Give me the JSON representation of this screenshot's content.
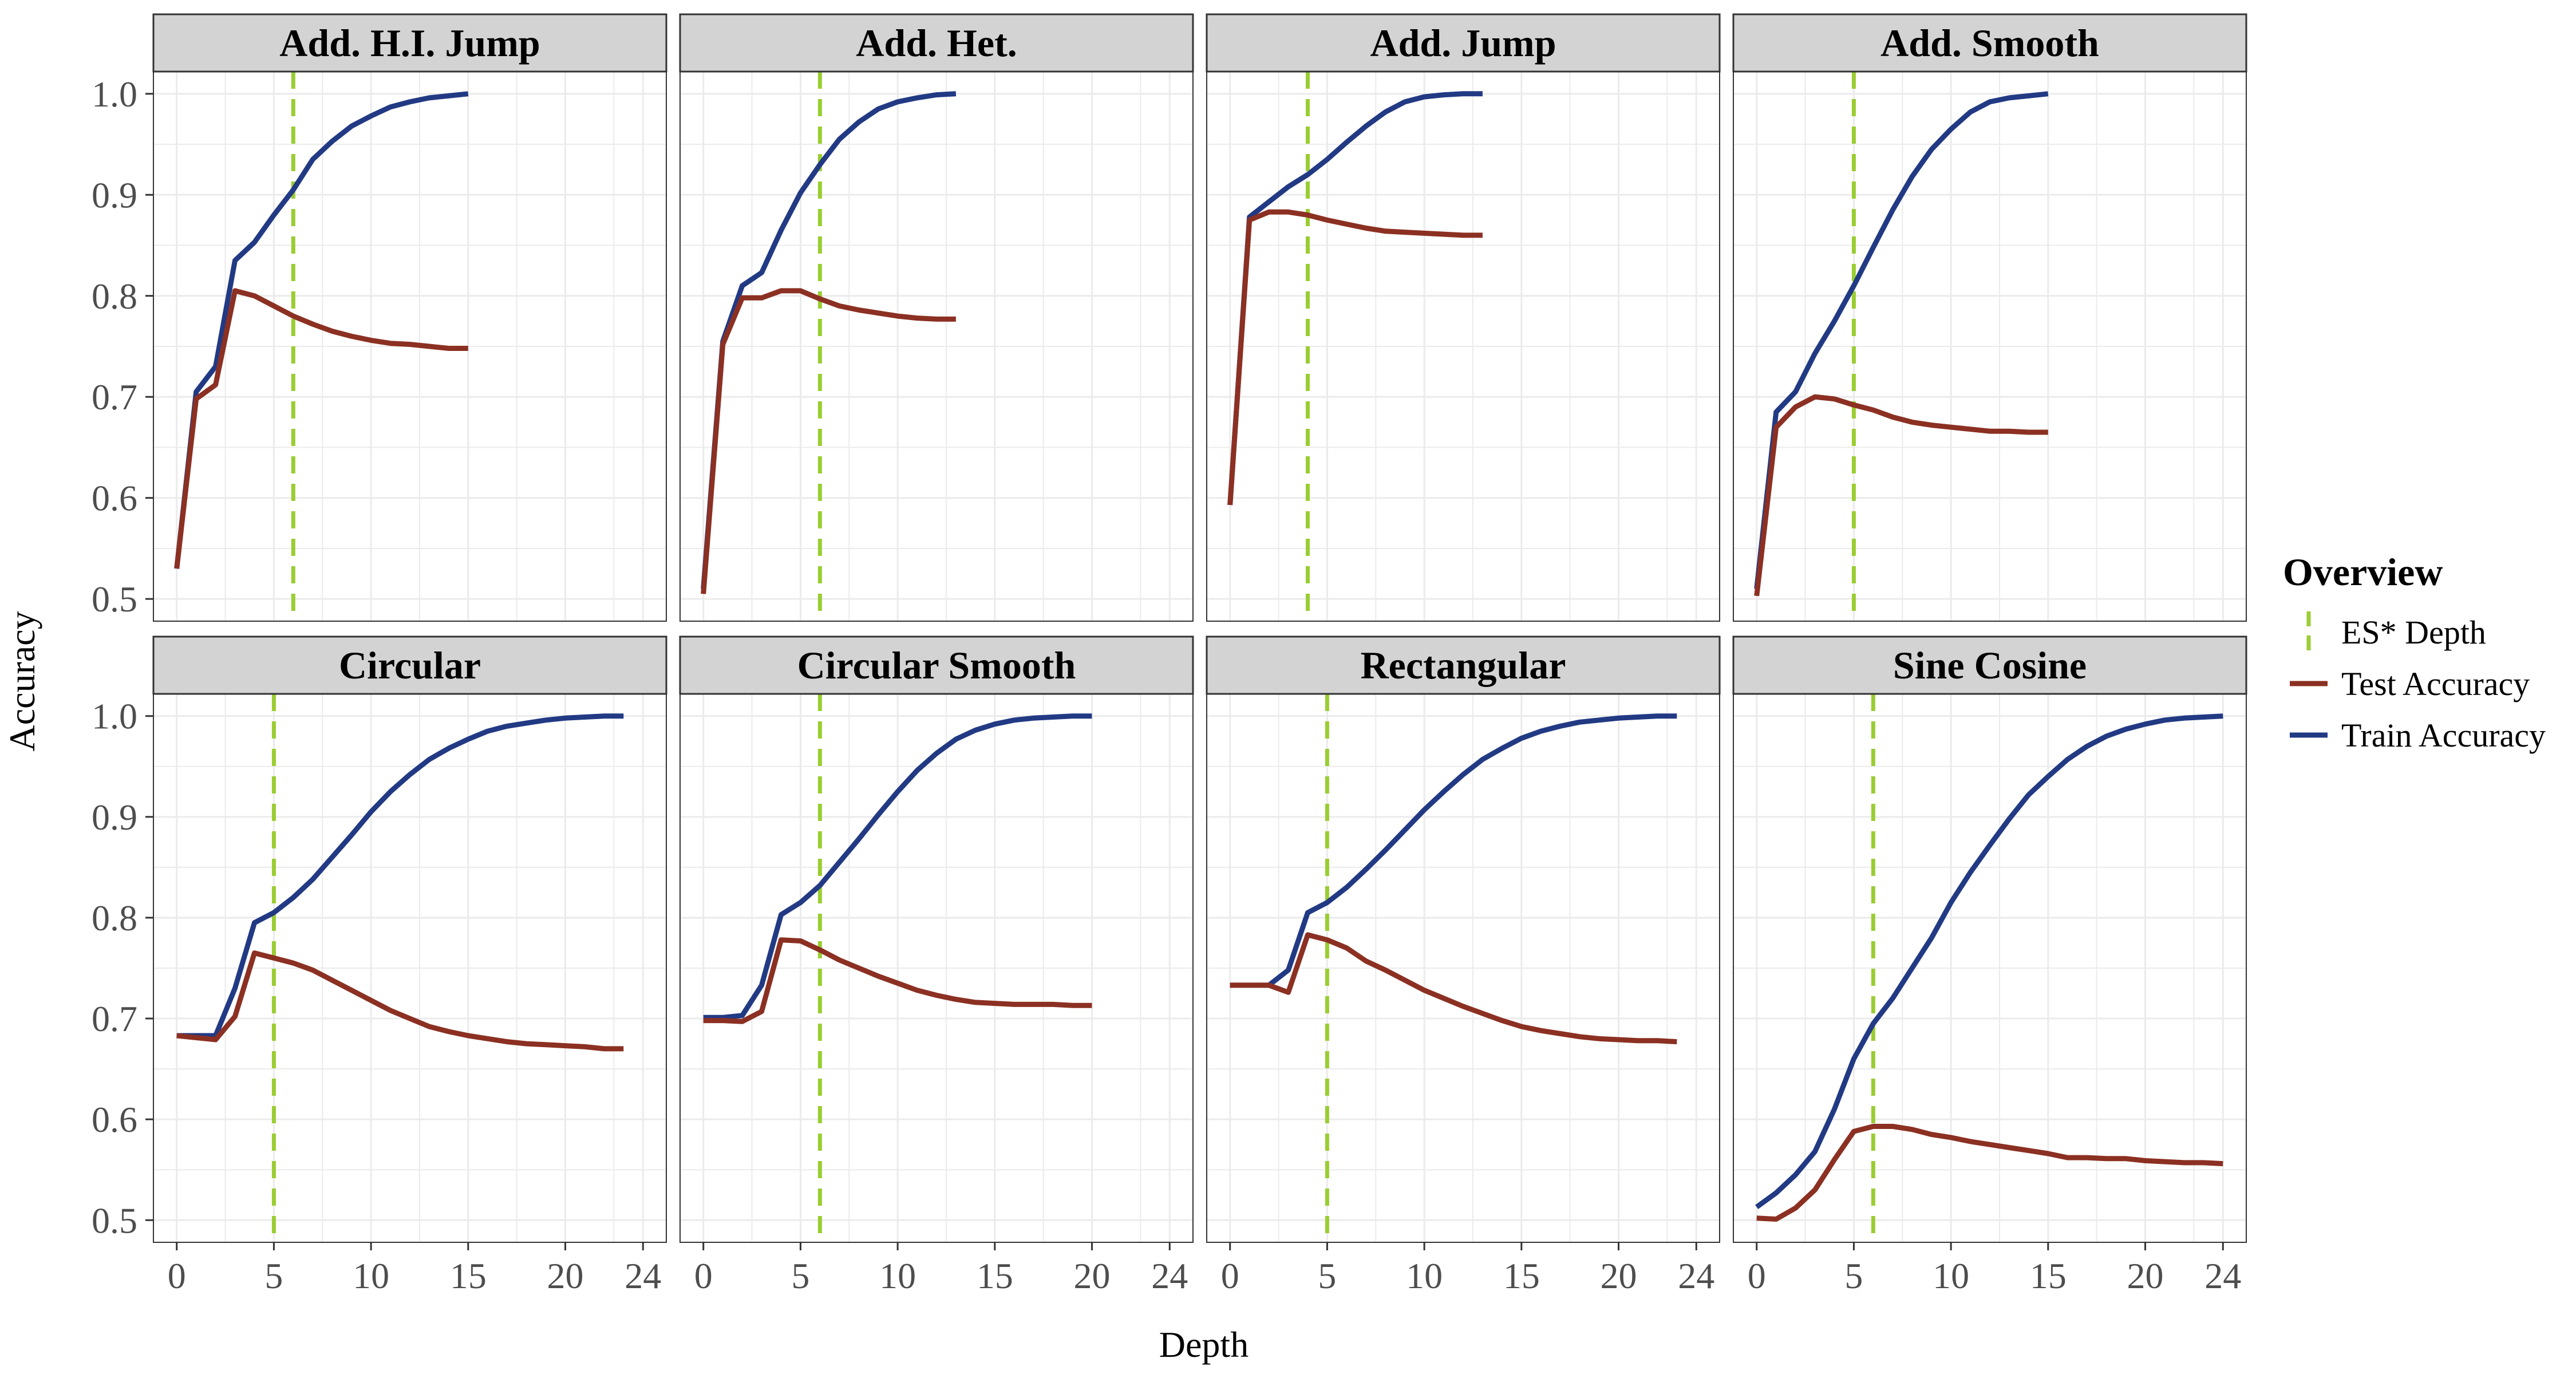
{
  "figure": {
    "xlabel": "Depth",
    "ylabel": "Accuracy",
    "x_ticks": [
      0,
      5,
      10,
      15,
      20,
      24
    ],
    "y_ticks": [
      0.5,
      0.6,
      0.7,
      0.8,
      0.9,
      1.0
    ],
    "xlim": [
      -1.2,
      25.2
    ],
    "ylim": [
      0.478,
      1.022
    ],
    "legend": {
      "title": "Overview",
      "position": "right",
      "entries": [
        {
          "label": "ES* Depth",
          "color": "#9ACD32",
          "style": "dashed-vertical"
        },
        {
          "label": "Test Accuracy",
          "color": "#8B3022",
          "style": "line"
        },
        {
          "label": "Train Accuracy",
          "color": "#223A84",
          "style": "line"
        }
      ]
    },
    "colors": {
      "train": "#223A84",
      "test": "#8B3022",
      "es": "#9ACD32",
      "strip_bg": "#D3D3D3",
      "grid": "#EBEBEB"
    }
  },
  "chart_data": [
    {
      "type": "line",
      "title": "Add. H.I. Jump",
      "es_depth": 6,
      "x": [
        0,
        1,
        2,
        3,
        4,
        5,
        6,
        7,
        8,
        9,
        10,
        11,
        12,
        13,
        14,
        15
      ],
      "series": [
        {
          "name": "Train Accuracy",
          "values": [
            0.53,
            0.705,
            0.73,
            0.835,
            0.853,
            0.88,
            0.905,
            0.935,
            0.953,
            0.968,
            0.978,
            0.987,
            0.992,
            0.996,
            0.998,
            1.0
          ]
        },
        {
          "name": "Test Accuracy",
          "values": [
            0.53,
            0.698,
            0.712,
            0.805,
            0.8,
            0.79,
            0.78,
            0.772,
            0.765,
            0.76,
            0.756,
            0.753,
            0.752,
            0.75,
            0.748,
            0.748
          ]
        }
      ]
    },
    {
      "type": "line",
      "title": "Add. Het.",
      "es_depth": 6,
      "x": [
        0,
        1,
        2,
        3,
        4,
        5,
        6,
        7,
        8,
        9,
        10,
        11,
        12,
        13
      ],
      "series": [
        {
          "name": "Train Accuracy",
          "values": [
            0.51,
            0.755,
            0.81,
            0.823,
            0.865,
            0.902,
            0.93,
            0.955,
            0.972,
            0.985,
            0.992,
            0.996,
            0.999,
            1.0
          ]
        },
        {
          "name": "Test Accuracy",
          "values": [
            0.505,
            0.752,
            0.798,
            0.798,
            0.805,
            0.805,
            0.797,
            0.79,
            0.786,
            0.783,
            0.78,
            0.778,
            0.777,
            0.777
          ]
        }
      ]
    },
    {
      "type": "line",
      "title": "Add. Jump",
      "es_depth": 4,
      "x": [
        0,
        1,
        2,
        3,
        4,
        5,
        6,
        7,
        8,
        9,
        10,
        11,
        12,
        13
      ],
      "series": [
        {
          "name": "Train Accuracy",
          "values": [
            0.593,
            0.878,
            0.893,
            0.908,
            0.92,
            0.935,
            0.952,
            0.968,
            0.982,
            0.992,
            0.997,
            0.999,
            1.0,
            1.0
          ]
        },
        {
          "name": "Test Accuracy",
          "values": [
            0.593,
            0.875,
            0.883,
            0.883,
            0.88,
            0.875,
            0.871,
            0.867,
            0.864,
            0.863,
            0.862,
            0.861,
            0.86,
            0.86
          ]
        }
      ]
    },
    {
      "type": "line",
      "title": "Add. Smooth",
      "es_depth": 5,
      "x": [
        0,
        1,
        2,
        3,
        4,
        5,
        6,
        7,
        8,
        9,
        10,
        11,
        12,
        13,
        14,
        15
      ],
      "series": [
        {
          "name": "Train Accuracy",
          "values": [
            0.51,
            0.685,
            0.705,
            0.743,
            0.775,
            0.81,
            0.848,
            0.885,
            0.918,
            0.945,
            0.965,
            0.982,
            0.992,
            0.996,
            0.998,
            1.0
          ]
        },
        {
          "name": "Test Accuracy",
          "values": [
            0.503,
            0.67,
            0.69,
            0.7,
            0.698,
            0.692,
            0.687,
            0.68,
            0.675,
            0.672,
            0.67,
            0.668,
            0.666,
            0.666,
            0.665,
            0.665
          ]
        }
      ]
    },
    {
      "type": "line",
      "title": "Circular",
      "es_depth": 5,
      "x": [
        0,
        1,
        2,
        3,
        4,
        5,
        6,
        7,
        8,
        9,
        10,
        11,
        12,
        13,
        14,
        15,
        16,
        17,
        18,
        19,
        20,
        21,
        22,
        23
      ],
      "series": [
        {
          "name": "Train Accuracy",
          "values": [
            0.683,
            0.683,
            0.683,
            0.73,
            0.795,
            0.805,
            0.82,
            0.838,
            0.86,
            0.882,
            0.905,
            0.925,
            0.942,
            0.957,
            0.968,
            0.977,
            0.985,
            0.99,
            0.993,
            0.996,
            0.998,
            0.999,
            1.0,
            1.0
          ]
        },
        {
          "name": "Test Accuracy",
          "values": [
            0.683,
            0.681,
            0.679,
            0.702,
            0.765,
            0.76,
            0.755,
            0.748,
            0.738,
            0.728,
            0.718,
            0.708,
            0.7,
            0.692,
            0.687,
            0.683,
            0.68,
            0.677,
            0.675,
            0.674,
            0.673,
            0.672,
            0.67,
            0.67
          ]
        }
      ]
    },
    {
      "type": "line",
      "title": "Circular Smooth",
      "es_depth": 6,
      "x": [
        0,
        1,
        2,
        3,
        4,
        5,
        6,
        7,
        8,
        9,
        10,
        11,
        12,
        13,
        14,
        15,
        16,
        17,
        18,
        19,
        20
      ],
      "series": [
        {
          "name": "Train Accuracy",
          "values": [
            0.701,
            0.701,
            0.703,
            0.733,
            0.803,
            0.815,
            0.832,
            0.855,
            0.878,
            0.902,
            0.925,
            0.946,
            0.963,
            0.977,
            0.986,
            0.992,
            0.996,
            0.998,
            0.999,
            1.0,
            1.0
          ]
        },
        {
          "name": "Test Accuracy",
          "values": [
            0.698,
            0.698,
            0.697,
            0.707,
            0.778,
            0.777,
            0.768,
            0.758,
            0.75,
            0.742,
            0.735,
            0.728,
            0.723,
            0.719,
            0.716,
            0.715,
            0.714,
            0.714,
            0.714,
            0.713,
            0.713
          ]
        }
      ]
    },
    {
      "type": "line",
      "title": "Rectangular",
      "es_depth": 5,
      "x": [
        0,
        1,
        2,
        3,
        4,
        5,
        6,
        7,
        8,
        9,
        10,
        11,
        12,
        13,
        14,
        15,
        16,
        17,
        18,
        19,
        20,
        21,
        22,
        23
      ],
      "series": [
        {
          "name": "Train Accuracy",
          "values": [
            0.733,
            0.733,
            0.733,
            0.748,
            0.805,
            0.815,
            0.83,
            0.848,
            0.867,
            0.887,
            0.907,
            0.925,
            0.942,
            0.957,
            0.968,
            0.978,
            0.985,
            0.99,
            0.994,
            0.996,
            0.998,
            0.999,
            1.0,
            1.0
          ]
        },
        {
          "name": "Test Accuracy",
          "values": [
            0.733,
            0.733,
            0.733,
            0.726,
            0.783,
            0.778,
            0.77,
            0.757,
            0.748,
            0.738,
            0.728,
            0.72,
            0.712,
            0.705,
            0.698,
            0.692,
            0.688,
            0.685,
            0.682,
            0.68,
            0.679,
            0.678,
            0.678,
            0.677
          ]
        }
      ]
    },
    {
      "type": "line",
      "title": "Sine Cosine",
      "es_depth": 6,
      "x": [
        0,
        1,
        2,
        3,
        4,
        5,
        6,
        7,
        8,
        9,
        10,
        11,
        12,
        13,
        14,
        15,
        16,
        17,
        18,
        19,
        20,
        21,
        22,
        23,
        24
      ],
      "series": [
        {
          "name": "Train Accuracy",
          "values": [
            0.513,
            0.527,
            0.545,
            0.568,
            0.61,
            0.66,
            0.695,
            0.72,
            0.75,
            0.78,
            0.815,
            0.845,
            0.872,
            0.898,
            0.922,
            0.94,
            0.957,
            0.97,
            0.98,
            0.987,
            0.992,
            0.996,
            0.998,
            0.999,
            1.0
          ]
        },
        {
          "name": "Test Accuracy",
          "values": [
            0.502,
            0.501,
            0.512,
            0.53,
            0.56,
            0.588,
            0.593,
            0.593,
            0.59,
            0.585,
            0.582,
            0.578,
            0.575,
            0.572,
            0.569,
            0.566,
            0.562,
            0.562,
            0.561,
            0.561,
            0.559,
            0.558,
            0.557,
            0.557,
            0.556
          ]
        }
      ]
    }
  ]
}
